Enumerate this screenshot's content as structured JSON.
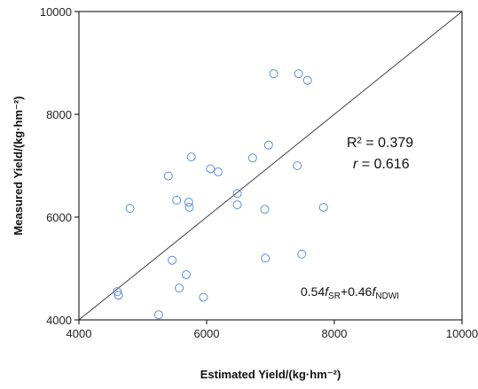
{
  "chart_data": {
    "type": "scatter",
    "title": "",
    "xlabel": "Estimated Yield/(kg·hm⁻²)",
    "ylabel": "Measured Yield/(kg·hm⁻²)",
    "xlim": [
      4000,
      10000
    ],
    "ylim": [
      4000,
      10000
    ],
    "x_ticks": [
      4000,
      6000,
      8000,
      10000
    ],
    "y_ticks": [
      4000,
      6000,
      8000,
      10000
    ],
    "x_tick_labels": [
      "4000",
      "6000",
      "8000",
      "10000"
    ],
    "y_tick_labels": [
      "4000",
      "6000",
      "8000",
      "10000"
    ],
    "grid": false,
    "legend": false,
    "reference_line": {
      "label": "",
      "from": [
        4000,
        4000
      ],
      "to": [
        10000,
        10000
      ]
    },
    "annotations": {
      "r2_label": "R² = 0.379",
      "r_label_italic": "r",
      "r_label_rest": " = 0.616",
      "formula_coef1": "0.54",
      "formula_f1": "f",
      "formula_sub1": "SR",
      "formula_plus": "+0.46",
      "formula_f2": "f",
      "formula_sub2": "NDWI"
    },
    "colors": {
      "marker": "#5b8fd6",
      "line": "#404040",
      "axis": "#000000"
    },
    "points": [
      {
        "x": 4600,
        "y": 4550
      },
      {
        "x": 4620,
        "y": 4480
      },
      {
        "x": 4800,
        "y": 6170
      },
      {
        "x": 5250,
        "y": 4100
      },
      {
        "x": 5400,
        "y": 6800
      },
      {
        "x": 5460,
        "y": 5160
      },
      {
        "x": 5530,
        "y": 6330
      },
      {
        "x": 5570,
        "y": 4620
      },
      {
        "x": 5680,
        "y": 4880
      },
      {
        "x": 5720,
        "y": 6290
      },
      {
        "x": 5730,
        "y": 6190
      },
      {
        "x": 5760,
        "y": 7170
      },
      {
        "x": 5950,
        "y": 4440
      },
      {
        "x": 6060,
        "y": 6940
      },
      {
        "x": 6180,
        "y": 6880
      },
      {
        "x": 6480,
        "y": 6460
      },
      {
        "x": 6480,
        "y": 6240
      },
      {
        "x": 6720,
        "y": 7150
      },
      {
        "x": 6910,
        "y": 6150
      },
      {
        "x": 6920,
        "y": 5200
      },
      {
        "x": 6970,
        "y": 7400
      },
      {
        "x": 7050,
        "y": 8790
      },
      {
        "x": 7420,
        "y": 7000
      },
      {
        "x": 7440,
        "y": 8790
      },
      {
        "x": 7490,
        "y": 5280
      },
      {
        "x": 7580,
        "y": 8660
      },
      {
        "x": 7830,
        "y": 6190
      }
    ]
  }
}
